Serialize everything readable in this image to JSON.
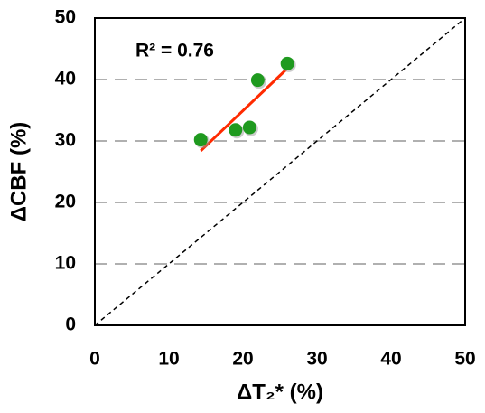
{
  "chart_data": {
    "type": "scatter",
    "x_label": "ΔT₂* (%)",
    "y_label": "ΔCBF (%)",
    "annotation": "R² = 0.76",
    "x": [
      14.3,
      19.0,
      20.9,
      22.0,
      26.0
    ],
    "values": [
      30.2,
      31.8,
      32.2,
      39.9,
      42.6
    ],
    "color": "#1f9a1f",
    "fit_line": {
      "x": [
        14.3,
        26.0
      ],
      "values": [
        28.4,
        41.8
      ],
      "color": "#ff2a00"
    },
    "reference_line": {
      "x": [
        0,
        50
      ],
      "values": [
        0,
        50
      ],
      "color": "#000000"
    },
    "xlim": [
      0,
      50
    ],
    "ylim": [
      0,
      50
    ],
    "xticks": [
      0,
      10,
      20,
      30,
      40,
      50
    ],
    "yticks": [
      0,
      10,
      20,
      30,
      40,
      50
    ],
    "grid": true
  }
}
